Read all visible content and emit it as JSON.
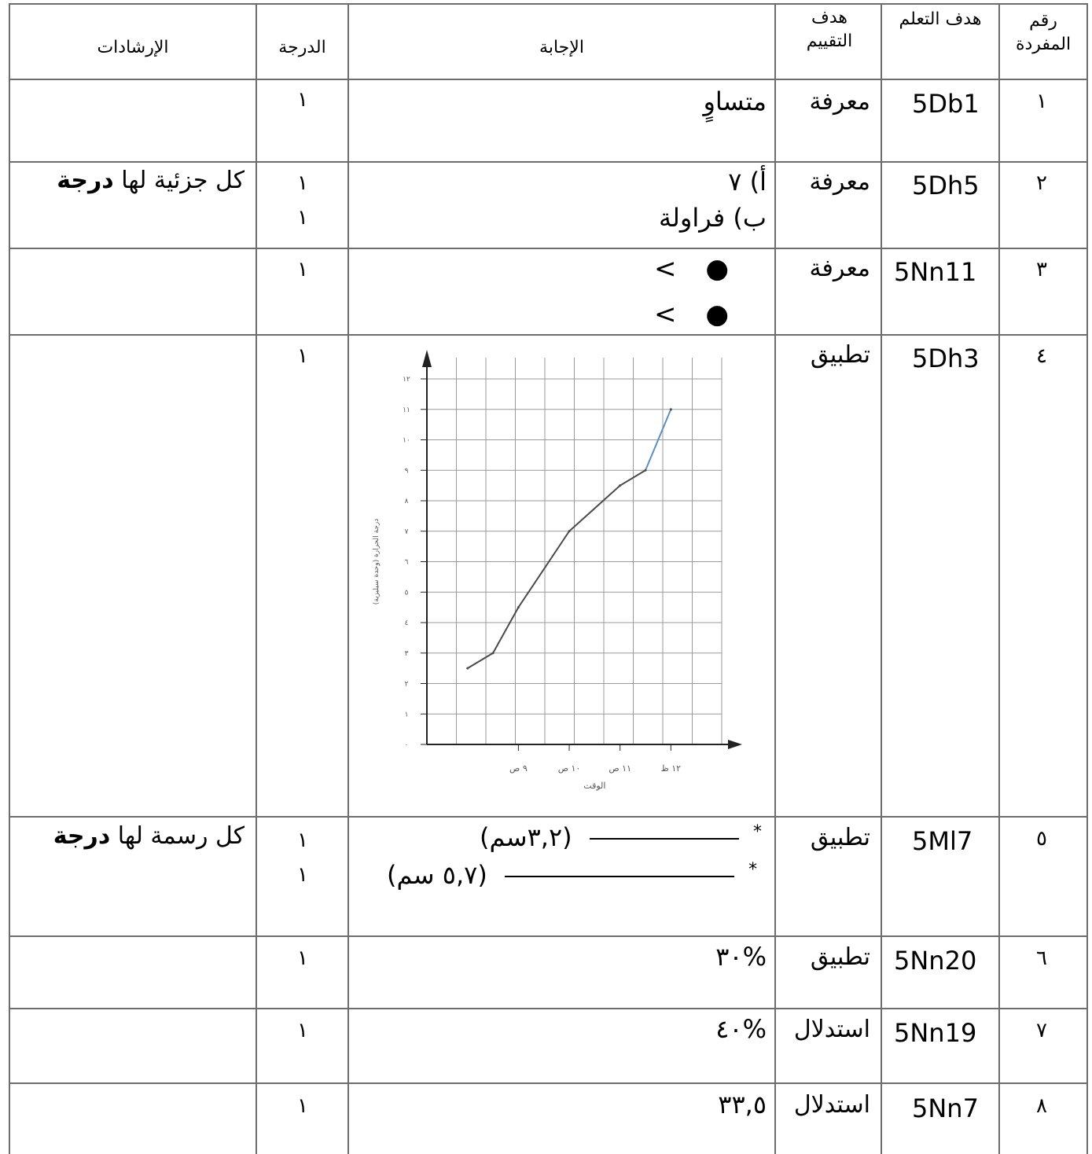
{
  "headers": {
    "item_no": "رقم المفردة",
    "learning_objective": "هدف التعلم",
    "assessment_objective": "هدف التقييم",
    "answer": "الإجابة",
    "score": "الدرجة",
    "guidance": "الإرشادات"
  },
  "rows": [
    {
      "no": "١",
      "code": "5Db1",
      "level": "معرفة",
      "answer_lines": [
        "متساوٍ"
      ],
      "scores": [
        "١"
      ],
      "guidance": "",
      "guidance_bold": ""
    },
    {
      "no": "٢",
      "code": "5Dh5",
      "level": "معرفة",
      "answer_lines": [
        "أ) ٧",
        "ب) فراولة"
      ],
      "scores": [
        "١",
        "١"
      ],
      "guidance": "كل جزئية لها ",
      "guidance_bold": "درجة"
    },
    {
      "no": "٣",
      "code": "5Nn11",
      "level": "معرفة",
      "answer_lines": [
        "<",
        "<"
      ],
      "scores": [
        "١"
      ],
      "guidance": "",
      "guidance_bold": ""
    },
    {
      "no": "٤",
      "code": "5Dh3",
      "level": "تطبيق",
      "answer_lines": [],
      "scores": [
        "١"
      ],
      "guidance": "",
      "guidance_bold": ""
    },
    {
      "no": "٥",
      "code": "5Ml7",
      "level": "تطبيق",
      "answer_lines": [
        "(٣,٢سم)",
        "(٥,٧ سم)"
      ],
      "scores": [
        "١",
        "١"
      ],
      "guidance": "كل رسمة لها ",
      "guidance_bold": "درجة"
    },
    {
      "no": "٦",
      "code": "5Nn20",
      "level": "تطبيق",
      "answer_lines": [
        "%٣٠"
      ],
      "scores": [
        "١"
      ],
      "guidance": "",
      "guidance_bold": ""
    },
    {
      "no": "٧",
      "code": "5Nn19",
      "level": "استدلال",
      "answer_lines": [
        "%٤٠"
      ],
      "scores": [
        "١"
      ],
      "guidance": "",
      "guidance_bold": ""
    },
    {
      "no": "٨",
      "code": "5Nn7",
      "level": "استدلال",
      "answer_lines": [
        "٣٣,٥"
      ],
      "scores": [
        "١"
      ],
      "guidance": "",
      "guidance_bold": ""
    }
  ],
  "chart_data": {
    "type": "line",
    "xlabel": "الوقت",
    "ylabel": "درجة الحرارة (وحدة سيليزية)",
    "x_tick_labels": [
      "٩ ص",
      "١٠ ص",
      "١١ ص",
      "١٢ ظ"
    ],
    "y_tick_labels": [
      "٠",
      "١",
      "٢",
      "٣",
      "٤",
      "٥",
      "٦",
      "٧",
      "٨",
      "٩",
      "١٠",
      "١١",
      "١٢"
    ],
    "ylim": [
      0,
      12
    ],
    "series": [
      {
        "x": [
          8.0,
          8.5,
          9.0,
          10.0,
          11.0,
          11.5,
          12.0
        ],
        "values": [
          2.5,
          3,
          4.5,
          7,
          8.5,
          9,
          11
        ]
      }
    ],
    "grid": true,
    "line_colors": [
      "#4a4a4a",
      "#5b8fc4"
    ]
  }
}
